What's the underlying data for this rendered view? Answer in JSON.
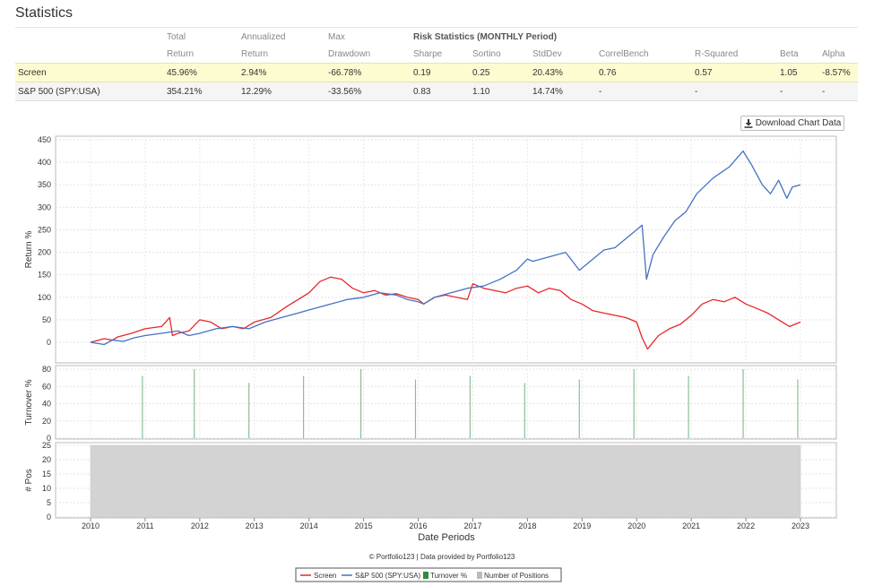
{
  "header": {
    "title": "Statistics"
  },
  "stats_table": {
    "header_row1": [
      "",
      "Total",
      "Annualized",
      "Max",
      "Risk Statistics (MONTHLY Period)",
      "",
      "",
      "",
      "",
      "",
      ""
    ],
    "header_row2": [
      "",
      "Return",
      "Return",
      "Drawdown",
      "Sharpe",
      "Sortino",
      "StdDev",
      "CorrelBench",
      "R-Squared",
      "Beta",
      "Alpha"
    ],
    "rows": [
      {
        "name": "Screen",
        "cells": [
          "45.96%",
          "2.94%",
          "-66.78%",
          "0.19",
          "0.25",
          "20.43%",
          "0.76",
          "0.57",
          "1.05",
          "-8.57%"
        ]
      },
      {
        "name": "S&P 500 (SPY:USA)",
        "cells": [
          "354.21%",
          "12.29%",
          "-33.56%",
          "0.83",
          "1.10",
          "14.74%",
          "-",
          "-",
          "-",
          "-"
        ]
      }
    ]
  },
  "download_button": {
    "label": "Download Chart Data",
    "icon": "download-icon"
  },
  "footer": {
    "credit": "© Portfolio123 | Data provided by Portfolio123"
  },
  "chart_data": [
    {
      "type": "line",
      "ylabel": "Return %",
      "ylim": [
        -20,
        450
      ],
      "yticks": [
        0,
        50,
        100,
        150,
        200,
        250,
        300,
        350,
        400,
        450
      ],
      "xlim": [
        2010,
        2023
      ],
      "xticks": [
        2010,
        2011,
        2012,
        2013,
        2014,
        2015,
        2016,
        2017,
        2018,
        2019,
        2020,
        2021,
        2022,
        2023
      ],
      "grid": true,
      "series": [
        {
          "name": "Screen",
          "color": "#e8262b",
          "x": [
            2010.0,
            2010.25,
            2010.4,
            2010.5,
            2010.75,
            2011.0,
            2011.3,
            2011.45,
            2011.5,
            2011.6,
            2011.8,
            2012.0,
            2012.2,
            2012.4,
            2012.6,
            2012.8,
            2013.0,
            2013.3,
            2013.6,
            2013.8,
            2014.0,
            2014.2,
            2014.4,
            2014.6,
            2014.8,
            2015.0,
            2015.2,
            2015.4,
            2015.6,
            2015.8,
            2016.0,
            2016.1,
            2016.3,
            2016.5,
            2016.7,
            2016.9,
            2017.0,
            2017.2,
            2017.4,
            2017.6,
            2017.8,
            2018.0,
            2018.2,
            2018.4,
            2018.6,
            2018.8,
            2019.0,
            2019.2,
            2019.4,
            2019.6,
            2019.8,
            2020.0,
            2020.1,
            2020.2,
            2020.4,
            2020.6,
            2020.8,
            2021.0,
            2021.2,
            2021.4,
            2021.6,
            2021.8,
            2022.0,
            2022.2,
            2022.4,
            2022.6,
            2022.8,
            2023.0
          ],
          "y": [
            0,
            8,
            5,
            12,
            20,
            30,
            35,
            55,
            15,
            20,
            25,
            50,
            45,
            30,
            35,
            30,
            45,
            55,
            80,
            95,
            110,
            135,
            145,
            140,
            120,
            110,
            115,
            105,
            108,
            100,
            95,
            85,
            100,
            105,
            100,
            95,
            130,
            120,
            115,
            110,
            120,
            125,
            110,
            120,
            115,
            95,
            85,
            70,
            65,
            60,
            55,
            45,
            10,
            -15,
            15,
            30,
            40,
            60,
            85,
            95,
            90,
            100,
            85,
            75,
            65,
            50,
            35,
            45
          ]
        },
        {
          "name": "S&P 500 (SPY:USA)",
          "color": "#4472c4",
          "x": [
            2010.0,
            2010.25,
            2010.4,
            2010.6,
            2010.8,
            2011.0,
            2011.3,
            2011.6,
            2011.8,
            2012.0,
            2012.3,
            2012.6,
            2012.9,
            2013.2,
            2013.5,
            2013.8,
            2014.1,
            2014.4,
            2014.7,
            2015.0,
            2015.3,
            2015.6,
            2015.8,
            2016.0,
            2016.1,
            2016.3,
            2016.6,
            2016.9,
            2017.2,
            2017.5,
            2017.8,
            2018.0,
            2018.1,
            2018.4,
            2018.7,
            2018.95,
            2019.1,
            2019.4,
            2019.6,
            2019.9,
            2020.1,
            2020.18,
            2020.3,
            2020.5,
            2020.7,
            2020.9,
            2021.1,
            2021.4,
            2021.7,
            2021.95,
            2022.1,
            2022.3,
            2022.45,
            2022.6,
            2022.75,
            2022.85,
            2023.0
          ],
          "y": [
            0,
            -5,
            5,
            2,
            10,
            15,
            20,
            25,
            15,
            20,
            30,
            35,
            30,
            45,
            55,
            65,
            75,
            85,
            95,
            100,
            110,
            105,
            95,
            90,
            85,
            100,
            110,
            120,
            125,
            140,
            160,
            185,
            180,
            190,
            200,
            160,
            175,
            205,
            210,
            240,
            260,
            140,
            195,
            235,
            270,
            290,
            330,
            365,
            390,
            425,
            395,
            350,
            330,
            360,
            320,
            345,
            350
          ]
        }
      ]
    },
    {
      "type": "bar",
      "ylabel": "Turnover %",
      "ylim": [
        0,
        85
      ],
      "yticks": [
        0,
        20,
        40,
        60,
        80
      ],
      "series": [
        {
          "name": "Turnover %",
          "color": "#2e8b3d",
          "x": [
            2010.95,
            2011.9,
            2012.9,
            2013.9,
            2014.95,
            2015.95,
            2016.95,
            2017.95,
            2018.95,
            2019.95,
            2020.95,
            2021.95,
            2022.95
          ],
          "values": [
            72,
            80,
            64,
            72,
            80,
            68,
            72,
            64,
            68,
            80,
            72,
            80,
            68
          ]
        }
      ]
    },
    {
      "type": "area",
      "ylabel": "# Pos",
      "xlabel": "Date Periods",
      "ylim": [
        0,
        25
      ],
      "yticks": [
        0,
        5,
        10,
        15,
        20,
        25
      ],
      "series": [
        {
          "name": "Number of Positions",
          "color": "#d3d3d3",
          "x": [
            2010.0,
            2023.0
          ],
          "y": [
            25,
            25
          ]
        }
      ]
    }
  ]
}
